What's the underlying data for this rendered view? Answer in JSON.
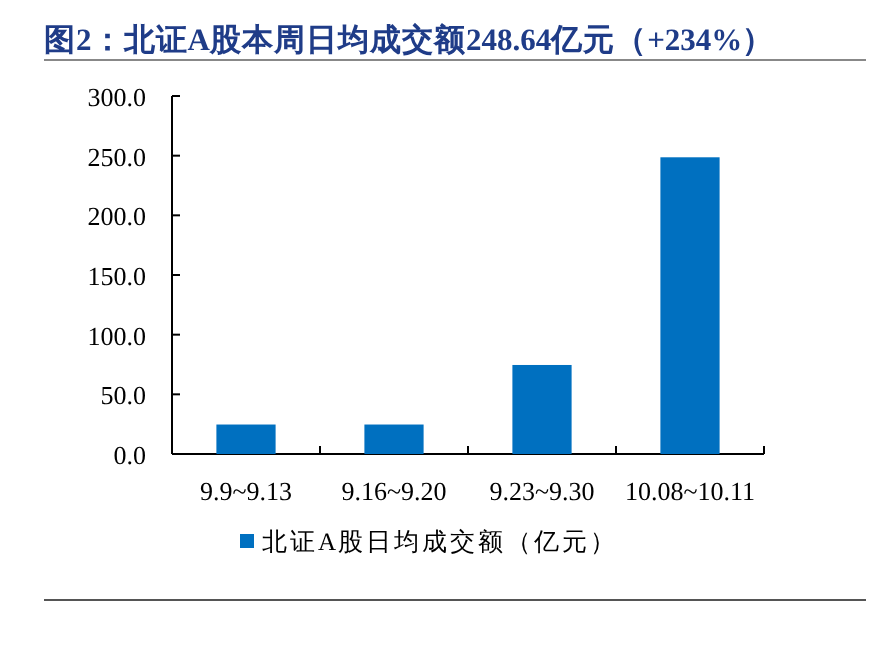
{
  "chart_data": {
    "type": "bar",
    "title": "图2：北证A股本周日均成交额248.64亿元（+234%）",
    "categories": [
      "9.9~9.13",
      "9.16~9.20",
      "9.23~9.30",
      "10.08~10.11"
    ],
    "series": [
      {
        "name": "北证A股日均成交额（亿元）",
        "color": "#0070c0",
        "values": [
          24.7,
          24.7,
          74.6,
          248.64
        ]
      }
    ],
    "ylim": [
      0,
      300
    ],
    "yticks": [
      {
        "value": 0,
        "label": "0.0"
      },
      {
        "value": 50,
        "label": "50.0"
      },
      {
        "value": 100,
        "label": "100.0"
      },
      {
        "value": 150,
        "label": "150.0"
      },
      {
        "value": 200,
        "label": "200.0"
      },
      {
        "value": 250,
        "label": "250.0"
      },
      {
        "value": 300,
        "label": "300.0"
      }
    ],
    "legend": "bottom"
  }
}
